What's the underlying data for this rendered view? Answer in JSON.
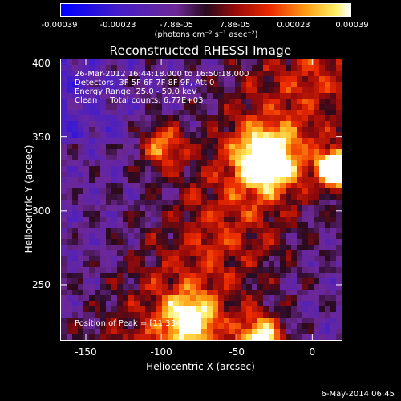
{
  "colorbar": {
    "ticks": [
      "-0.00039",
      "-0.00023",
      "-7.8e-05",
      "7.8e-05",
      "0.00023",
      "0.00039"
    ],
    "label": "(photons cm⁻² s⁻¹ asec⁻²)",
    "range": [
      -0.00039,
      0.00039
    ]
  },
  "chart_data": {
    "type": "heatmap",
    "title": "Reconstructed RHESSI Image",
    "xlabel": "Heliocentric X (arcsec)",
    "ylabel": "Heliocentric Y (arcsec)",
    "xlim": [
      -167,
      20
    ],
    "ylim": [
      212,
      403
    ],
    "xticks": [
      -150,
      -100,
      -50,
      0
    ],
    "yticks": [
      250,
      300,
      350,
      400
    ],
    "colormap": "rainbow-blue-purple-red-yellow-white",
    "peak": [
      11,
      334
    ],
    "annotations": {
      "line1": "26-Mar-2012 16:44:18.000 to 16:50:18.000",
      "line2": "Detectors: 3F 5F 6F 7F 8F 9F, Att 0",
      "line3": "Energy Range: 25.0 - 50.0 keV",
      "line4": "Clean     Total counts: 6.77E+03",
      "peak_text": "Position of Peak = [11,334]"
    }
  },
  "footer": "6-May-2014 06:45"
}
